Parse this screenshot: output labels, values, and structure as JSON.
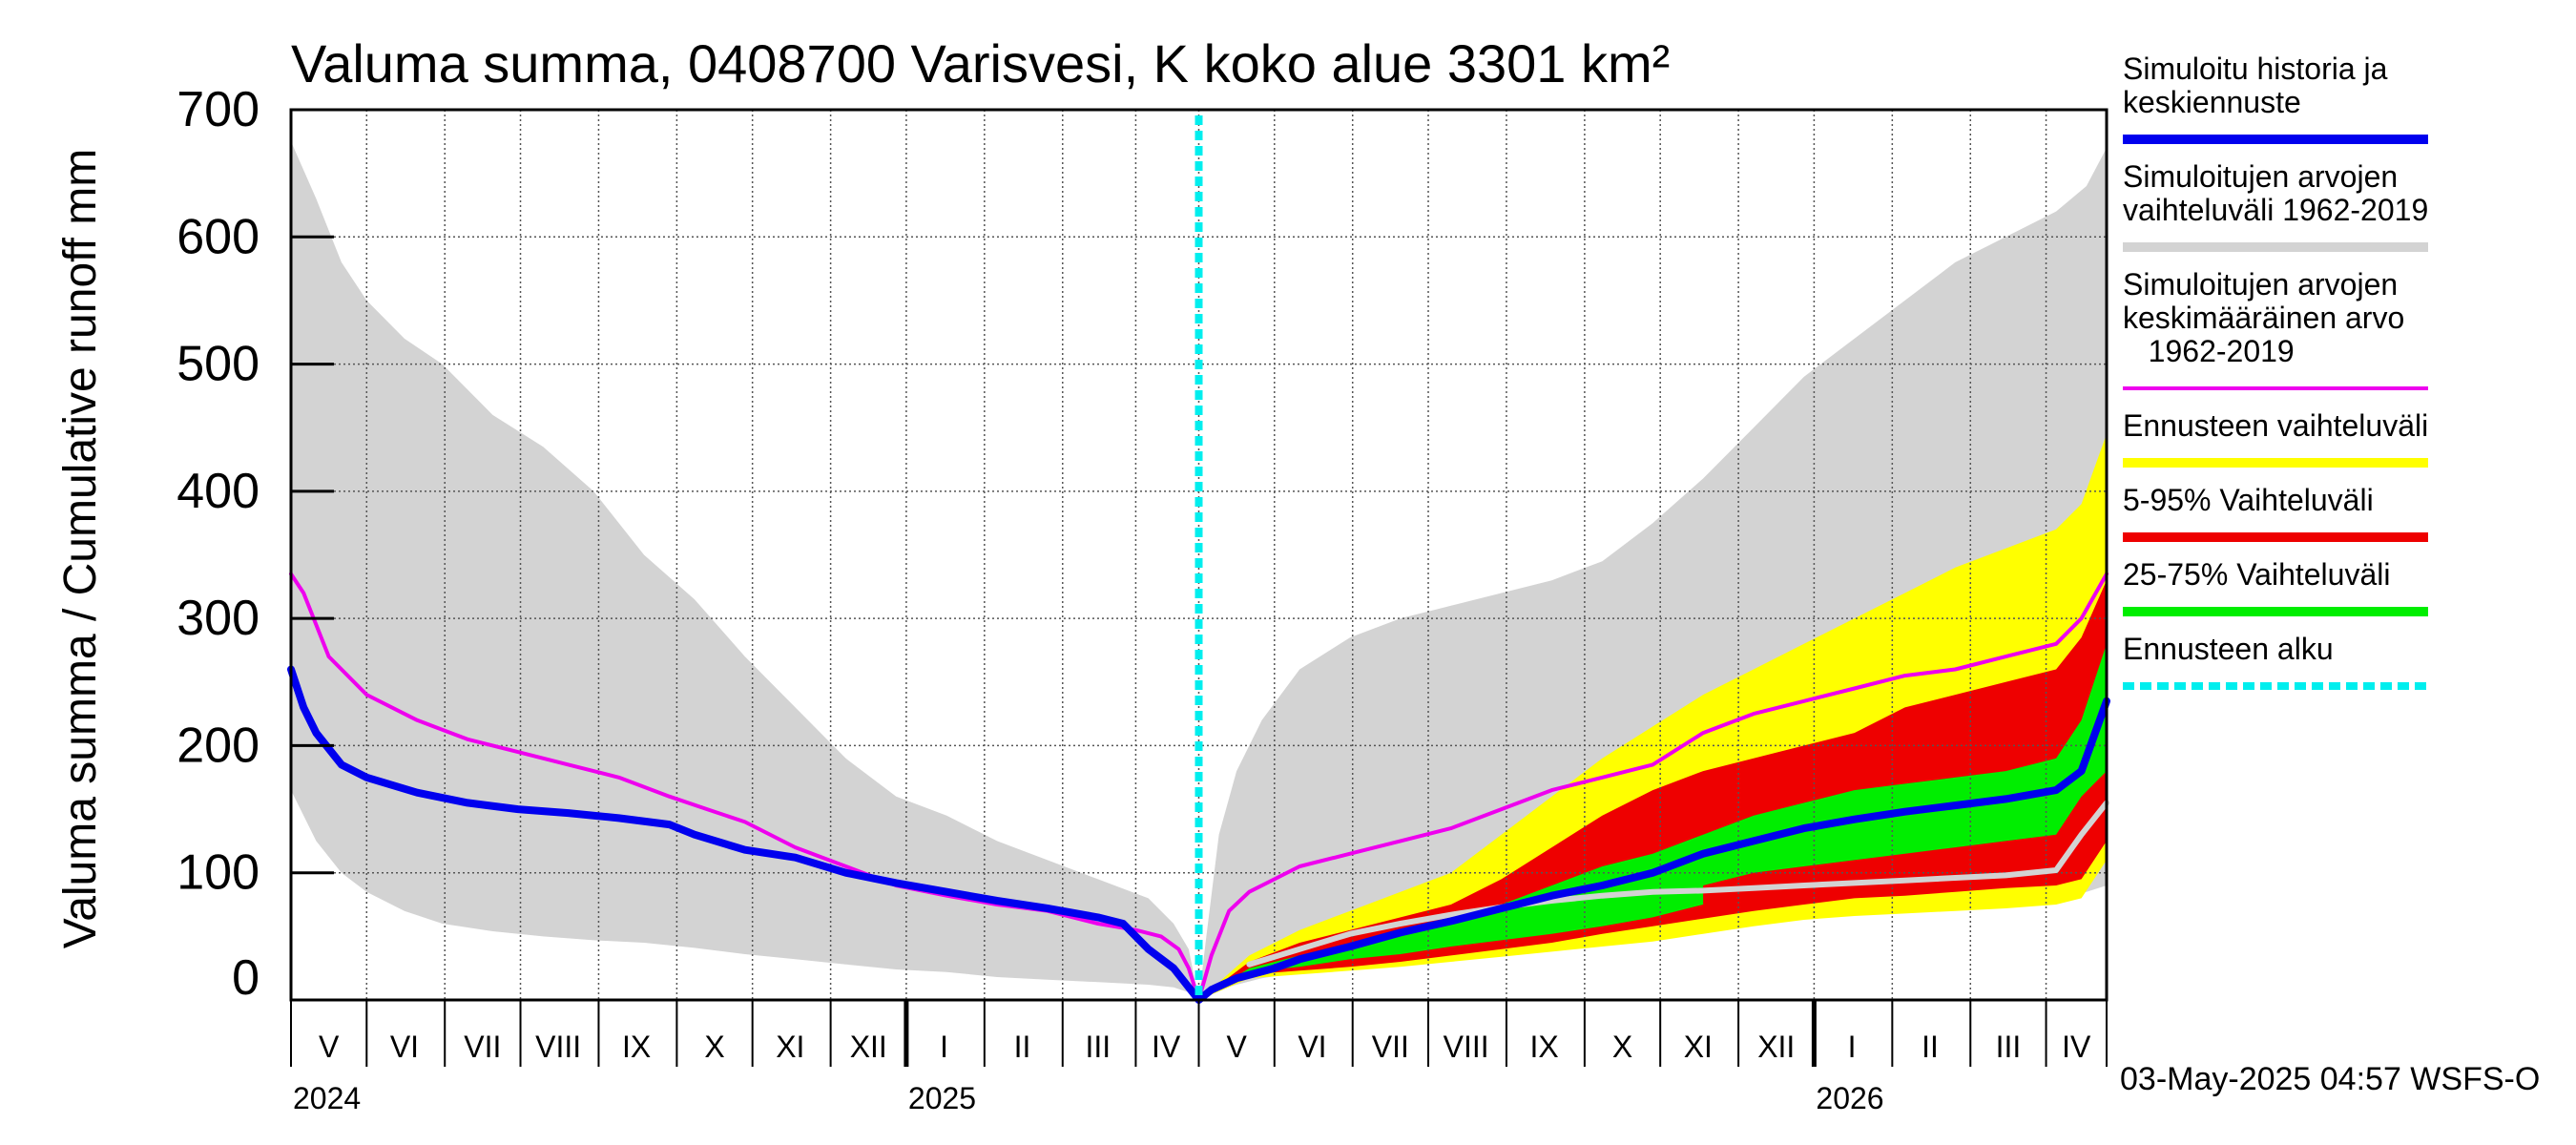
{
  "chart_data": {
    "type": "area",
    "title": "Valuma summa, 0408700 Varisvesi, K koko alue 3301 km²",
    "ylabel": "Valuma summa / Cumulative runoff    mm",
    "ylim": [
      0,
      700
    ],
    "yticks": [
      0,
      100,
      200,
      300,
      400,
      500,
      600,
      700
    ],
    "x_unit": "days since 2024-04-15",
    "xlim": [
      0,
      720
    ],
    "forecast_start_day": 360,
    "grid": true,
    "month_boundaries": [
      0,
      30,
      61,
      91,
      122,
      153,
      183,
      214,
      244,
      275,
      306,
      335,
      360,
      390,
      421,
      451,
      482,
      513,
      543,
      574,
      604,
      635,
      666,
      696,
      720
    ],
    "year_boundaries": [
      244,
      604
    ],
    "month_labels": [
      {
        "label": "V",
        "day": 15
      },
      {
        "label": "VI",
        "day": 45
      },
      {
        "label": "VII",
        "day": 76
      },
      {
        "label": "VIII",
        "day": 106
      },
      {
        "label": "IX",
        "day": 137
      },
      {
        "label": "X",
        "day": 168
      },
      {
        "label": "XI",
        "day": 198
      },
      {
        "label": "XII",
        "day": 229
      },
      {
        "label": "I",
        "day": 259
      },
      {
        "label": "II",
        "day": 290
      },
      {
        "label": "III",
        "day": 320
      },
      {
        "label": "IV",
        "day": 347
      },
      {
        "label": "V",
        "day": 375
      },
      {
        "label": "VI",
        "day": 405
      },
      {
        "label": "VII",
        "day": 436
      },
      {
        "label": "VIII",
        "day": 466
      },
      {
        "label": "IX",
        "day": 497
      },
      {
        "label": "X",
        "day": 528
      },
      {
        "label": "XI",
        "day": 558
      },
      {
        "label": "XII",
        "day": 589
      },
      {
        "label": "I",
        "day": 619
      },
      {
        "label": "II",
        "day": 650
      },
      {
        "label": "III",
        "day": 681
      },
      {
        "label": "IV",
        "day": 708
      }
    ],
    "year_labels": [
      {
        "label": "2024",
        "day": 0
      },
      {
        "label": "2025",
        "day": 244
      },
      {
        "label": "2026",
        "day": 604
      }
    ],
    "legend": [
      {
        "label": "Simuloitu historia ja\nkeskiennuste",
        "color": "#0000ee",
        "style": "solid"
      },
      {
        "label": "Simuloitujen arvojen\nvaihteluväli 1962-2019",
        "color": "#d3d3d3",
        "style": "solid"
      },
      {
        "label": "Simuloitujen arvojen\nkeskimääräinen arvo\n   1962-2019",
        "color": "#ee00ee",
        "style": "thin"
      },
      {
        "label": "Ennusteen vaihteluväli",
        "color": "#ffff00",
        "style": "solid"
      },
      {
        "label": "5-95% Vaihteluväli",
        "color": "#ee0000",
        "style": "solid"
      },
      {
        "label": "25-75% Vaihteluväli",
        "color": "#00ee00",
        "style": "solid"
      },
      {
        "label": "Ennusteen alku",
        "color": "#00eeee",
        "style": "dashed"
      }
    ],
    "footer": "03-May-2025 04:57 WSFS-O",
    "series": [
      {
        "name": "hist_range",
        "kind": "band",
        "color": "#d3d3d3",
        "x": [
          0,
          10,
          20,
          30,
          45,
          60,
          80,
          100,
          120,
          140,
          160,
          180,
          200,
          220,
          240,
          260,
          280,
          300,
          320,
          340,
          350,
          356,
          360
        ],
        "upper": [
          675,
          630,
          580,
          550,
          520,
          500,
          460,
          435,
          400,
          350,
          315,
          270,
          230,
          190,
          160,
          145,
          125,
          110,
          95,
          80,
          60,
          40,
          0
        ],
        "lower": [
          165,
          125,
          100,
          85,
          70,
          60,
          54,
          50,
          47,
          45,
          41,
          36,
          32,
          28,
          24,
          22,
          18,
          16,
          14,
          12,
          10,
          6,
          0
        ]
      },
      {
        "name": "hist_range_forecast",
        "kind": "band",
        "color": "#d3d3d3",
        "x": [
          360,
          363,
          368,
          375,
          385,
          400,
          420,
          440,
          460,
          480,
          500,
          520,
          540,
          560,
          580,
          600,
          620,
          640,
          660,
          680,
          700,
          712,
          720
        ],
        "upper": [
          0,
          50,
          130,
          180,
          220,
          260,
          285,
          300,
          310,
          320,
          330,
          345,
          375,
          410,
          450,
          490,
          520,
          550,
          580,
          600,
          620,
          640,
          670
        ],
        "lower": [
          0,
          5,
          8,
          12,
          17,
          22,
          25,
          30,
          35,
          40,
          45,
          50,
          55,
          58,
          62,
          65,
          68,
          72,
          75,
          78,
          82,
          85,
          90
        ]
      },
      {
        "name": "forecast_range",
        "kind": "band",
        "color": "#ffff00",
        "x": [
          360,
          380,
          400,
          420,
          440,
          460,
          480,
          500,
          520,
          540,
          560,
          580,
          600,
          620,
          640,
          660,
          680,
          700,
          710,
          720
        ],
        "upper": [
          0,
          35,
          55,
          70,
          85,
          100,
          130,
          160,
          190,
          215,
          240,
          260,
          280,
          300,
          320,
          340,
          355,
          370,
          390,
          445
        ],
        "lower": [
          0,
          17,
          20,
          23,
          26,
          30,
          34,
          38,
          42,
          46,
          52,
          58,
          63,
          66,
          68,
          70,
          72,
          75,
          80,
          110
        ]
      },
      {
        "name": "p5_95",
        "kind": "band",
        "color": "#ee0000",
        "x": [
          360,
          380,
          400,
          420,
          440,
          460,
          480,
          500,
          520,
          540,
          560,
          580,
          600,
          620,
          640,
          660,
          680,
          700,
          710,
          720
        ],
        "upper": [
          0,
          30,
          45,
          55,
          65,
          75,
          95,
          120,
          145,
          165,
          180,
          190,
          200,
          210,
          230,
          240,
          250,
          260,
          285,
          330
        ],
        "lower": [
          0,
          20,
          23,
          26,
          30,
          35,
          40,
          45,
          52,
          58,
          64,
          70,
          75,
          80,
          82,
          85,
          88,
          90,
          95,
          125
        ]
      },
      {
        "name": "p25_75",
        "kind": "band",
        "color": "#00ee00",
        "x": [
          360,
          380,
          400,
          420,
          440,
          460,
          480,
          500,
          520,
          540,
          560,
          580,
          600,
          620,
          640,
          660,
          680,
          700,
          710,
          720
        ],
        "upper": [
          0,
          25,
          35,
          45,
          55,
          65,
          75,
          90,
          105,
          115,
          130,
          145,
          155,
          165,
          170,
          175,
          180,
          190,
          220,
          280
        ],
        "lower": [
          0,
          22,
          26,
          32,
          36,
          42,
          47,
          52,
          58,
          65,
          75,
          85,
          90,
          95,
          98,
          100,
          105,
          110,
          115,
          140
        ]
      },
      {
        "name": "p5_95_lower_blob",
        "kind": "band",
        "color": "#ee0000",
        "x": [
          560,
          580,
          600,
          620,
          640,
          660,
          680,
          700,
          710,
          720
        ],
        "upper": [
          90,
          100,
          105,
          110,
          115,
          120,
          125,
          130,
          160,
          180
        ],
        "lower": [
          75,
          82,
          85,
          88,
          90,
          92,
          95,
          98,
          110,
          130
        ]
      },
      {
        "name": "forecast_mean_grey",
        "kind": "line",
        "color": "#d3d3d3",
        "width": 6,
        "x": [
          380,
          400,
          420,
          440,
          460,
          480,
          500,
          520,
          540,
          560,
          580,
          600,
          620,
          640,
          660,
          680,
          700,
          710,
          720
        ],
        "y": [
          28,
          40,
          52,
          60,
          67,
          73,
          78,
          82,
          85,
          86,
          88,
          90,
          92,
          94,
          96,
          98,
          102,
          130,
          155
        ]
      },
      {
        "name": "hist_mean",
        "kind": "line",
        "color": "#ee00ee",
        "width": 4,
        "x": [
          0,
          5,
          15,
          30,
          50,
          70,
          90,
          110,
          130,
          150,
          165,
          180,
          200,
          220,
          240,
          260,
          280,
          300,
          320,
          335,
          345,
          352,
          356,
          360,
          365,
          372,
          380,
          390,
          400,
          420,
          440,
          460,
          480,
          500,
          520,
          540,
          560,
          580,
          600,
          620,
          640,
          660,
          680,
          700,
          710,
          720
        ],
        "y": [
          335,
          320,
          270,
          240,
          220,
          205,
          195,
          185,
          175,
          160,
          150,
          140,
          120,
          105,
          90,
          82,
          75,
          70,
          60,
          55,
          50,
          40,
          25,
          0,
          35,
          70,
          85,
          95,
          105,
          115,
          125,
          135,
          150,
          165,
          175,
          185,
          210,
          225,
          235,
          245,
          255,
          260,
          270,
          280,
          300,
          335
        ]
      },
      {
        "name": "simulated",
        "kind": "line",
        "color": "#0000ee",
        "width": 8,
        "x": [
          0,
          5,
          10,
          20,
          30,
          50,
          70,
          90,
          110,
          130,
          150,
          160,
          180,
          200,
          220,
          240,
          260,
          280,
          300,
          320,
          330,
          340,
          350,
          356,
          360,
          365,
          375,
          390,
          400,
          420,
          440,
          460,
          480,
          500,
          520,
          540,
          560,
          580,
          600,
          620,
          640,
          660,
          680,
          700,
          710,
          720
        ],
        "y": [
          260,
          230,
          210,
          185,
          175,
          163,
          155,
          150,
          147,
          143,
          138,
          130,
          118,
          112,
          100,
          92,
          85,
          78,
          72,
          65,
          60,
          40,
          25,
          10,
          0,
          8,
          17,
          25,
          32,
          42,
          53,
          62,
          72,
          82,
          90,
          100,
          115,
          125,
          135,
          142,
          148,
          153,
          158,
          165,
          180,
          235
        ]
      },
      {
        "name": "forecast_start",
        "kind": "vline",
        "color": "#00eeee",
        "width": 8,
        "x": 360
      }
    ]
  }
}
